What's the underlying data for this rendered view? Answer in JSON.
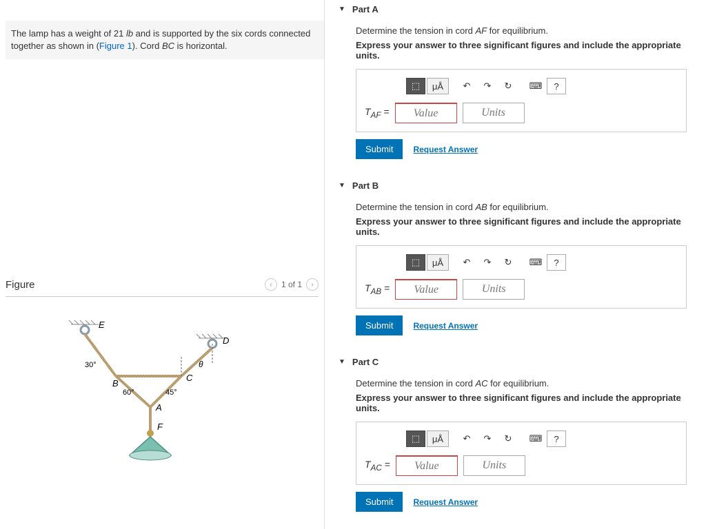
{
  "problem": {
    "text_before": "The lamp has a weight of 21 ",
    "unit": "lb",
    "text_mid": " and is supported by the six cords connected together as shown in (",
    "fig_link": "Figure 1",
    "text_after": "). Cord ",
    "cord": "BC",
    "text_end": " is horizontal."
  },
  "figure": {
    "title": "Figure",
    "pager": "1 of 1",
    "labels": {
      "E": "E",
      "D": "D",
      "B": "B",
      "C": "C",
      "A": "A",
      "F": "F",
      "theta": "θ"
    },
    "angles": {
      "a30": "30°",
      "a60": "60°",
      "a45": "45°"
    },
    "colors": {
      "rope": "#c4a878",
      "ring": "#8899aa",
      "lamp_fill": "#7abfb0",
      "lamp_stroke": "#4a8f80"
    }
  },
  "parts": [
    {
      "id": "A",
      "title": "Part A",
      "desc_pre": "Determine the tension in cord ",
      "desc_var": "AF",
      "desc_post": " for equilibrium.",
      "bold": "Express your answer to three significant figures and include the appropriate units.",
      "var_html": "T<sub>AF</sub> =",
      "value_ph": "Value",
      "units_ph": "Units",
      "submit": "Submit",
      "request": "Request Answer"
    },
    {
      "id": "B",
      "title": "Part B",
      "desc_pre": "Determine the tension in cord ",
      "desc_var": "AB",
      "desc_post": " for equilibrium.",
      "bold": "Express your answer to three significant figures and include the appropriate units.",
      "var_html": "T<sub>AB</sub> =",
      "value_ph": "Value",
      "units_ph": "Units",
      "submit": "Submit",
      "request": "Request Answer"
    },
    {
      "id": "C",
      "title": "Part C",
      "desc_pre": "Determine the tension in cord ",
      "desc_var": "AC",
      "desc_post": " for equilibrium.",
      "bold": "Express your answer to three significant figures and include the appropriate units.",
      "var_html": "T<sub>AC</sub> =",
      "value_ph": "Value",
      "units_ph": "Units",
      "submit": "Submit",
      "request": "Request Answer"
    }
  ],
  "toolbar": {
    "template": "⬚",
    "units": "μÅ",
    "undo": "↶",
    "redo": "↷",
    "reset": "↻",
    "keyboard": "⌨",
    "help": "?"
  }
}
